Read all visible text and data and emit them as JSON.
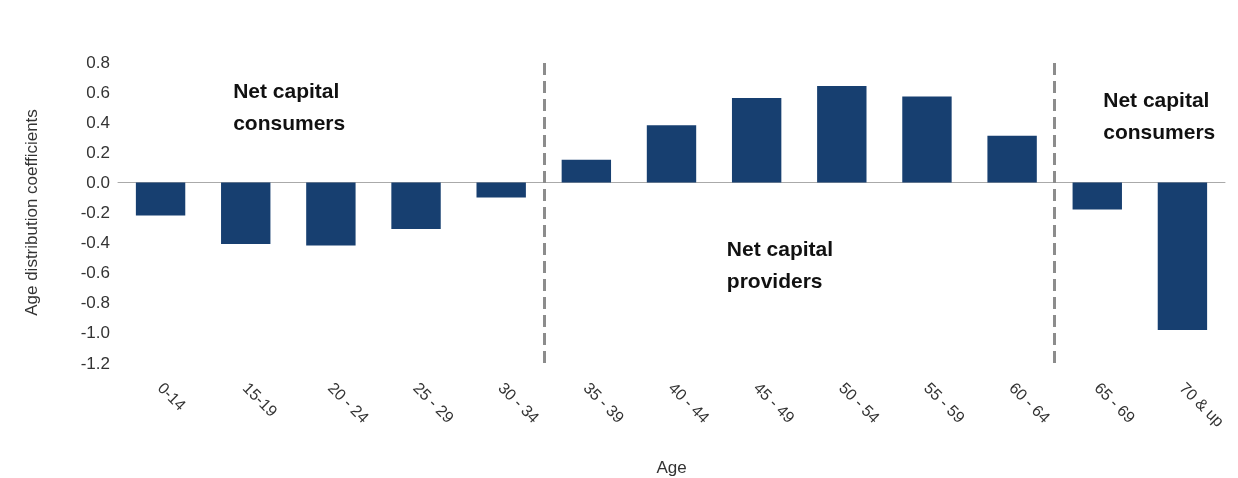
{
  "chart_data": {
    "type": "bar",
    "xlabel": "Age",
    "ylabel": "Age distribution coefficients",
    "categories": [
      "0-14",
      "15-19",
      "20 - 24",
      "25 - 29",
      "30 - 34",
      "35 - 39",
      "40 - 44",
      "45 - 49",
      "50 - 54",
      "55 - 59",
      "60 - 64",
      "65 - 69",
      "70 & up"
    ],
    "values": [
      -0.22,
      -0.41,
      -0.42,
      -0.31,
      -0.1,
      0.15,
      0.38,
      0.56,
      0.64,
      0.57,
      0.31,
      -0.18,
      -0.98
    ],
    "color": "#173f70",
    "ylim": [
      -1.2,
      0.8
    ],
    "yticks": [
      {
        "value": -1.2,
        "label": "-1.2"
      },
      {
        "value": -1.0,
        "label": "-1.0"
      },
      {
        "value": -0.8,
        "label": "-0.8"
      },
      {
        "value": -0.6,
        "label": "-0.6"
      },
      {
        "value": -0.4,
        "label": "-0.4"
      },
      {
        "value": -0.2,
        "label": "-0.2"
      },
      {
        "value": 0,
        "label": "0.0"
      },
      0.2,
      0.4,
      0.6,
      0.8
    ],
    "annotations": [
      "Net capital consumers",
      "Net capital providers",
      "Net capital consumers"
    ],
    "grid": false
  }
}
